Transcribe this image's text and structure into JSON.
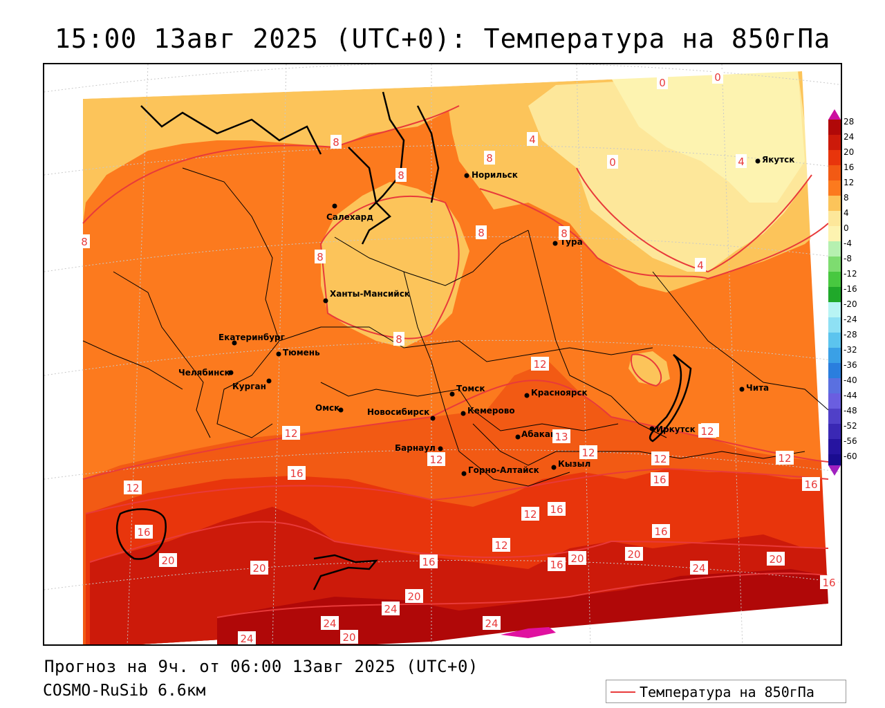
{
  "title": "15:00 13авг 2025 (UTC+0): Температура на 850гПа",
  "footer": {
    "forecast": "Прогноз на 9ч. от 06:00 13авг 2025 (UTC+0)",
    "model": "COSMO-RuSib 6.6км"
  },
  "key": {
    "label": "Температура на 850гПа",
    "color": "#e83a3a"
  },
  "colors": {
    "t_lt0": "#fdf3b0",
    "t_0_4": "#fde79a",
    "t_4_8": "#fcc45a",
    "t_8_12": "#fc7a1e",
    "t_12_16": "#f25a14",
    "t_16_20": "#e8350c",
    "t_20_24": "#cc1a0a",
    "t_gt24": "#b00808",
    "hot": "#e010a0"
  },
  "legend": {
    "ticks": [
      "28",
      "24",
      "20",
      "16",
      "12",
      "8",
      "4",
      "0",
      "-4",
      "-8",
      "-12",
      "-16",
      "-20",
      "-24",
      "-28",
      "-32",
      "-36",
      "-40",
      "-44",
      "-48",
      "-52",
      "-56",
      "-60"
    ]
  },
  "cities": [
    {
      "name": "Норильск"
    },
    {
      "name": "Якутск"
    },
    {
      "name": "Салехард"
    },
    {
      "name": "Тура"
    },
    {
      "name": "Ханты-Мансийск"
    },
    {
      "name": "Екатеринбург"
    },
    {
      "name": "Тюмень"
    },
    {
      "name": "Челябинск"
    },
    {
      "name": "Курган"
    },
    {
      "name": "Омск"
    },
    {
      "name": "Новосибирск"
    },
    {
      "name": "Томск"
    },
    {
      "name": "Кемерово"
    },
    {
      "name": "Красноярск"
    },
    {
      "name": "Абакан"
    },
    {
      "name": "Барнаул"
    },
    {
      "name": "Горно-Алтайск"
    },
    {
      "name": "Кызыл"
    },
    {
      "name": "Иркутск"
    },
    {
      "name": "Чита"
    }
  ],
  "isotherm_labels": [
    "0",
    "0",
    "4",
    "0",
    "4",
    "8",
    "8",
    "8",
    "8",
    "4",
    "8",
    "8",
    "8",
    "8",
    "12",
    "12",
    "12",
    "12",
    "16",
    "12",
    "16",
    "16",
    "12",
    "12",
    "12",
    "16",
    "16",
    "12",
    "16",
    "20",
    "20",
    "16",
    "16",
    "20",
    "20",
    "24",
    "20",
    "20",
    "24",
    "24",
    "24",
    "20",
    "16",
    "24",
    "13",
    "12",
    "12"
  ]
}
